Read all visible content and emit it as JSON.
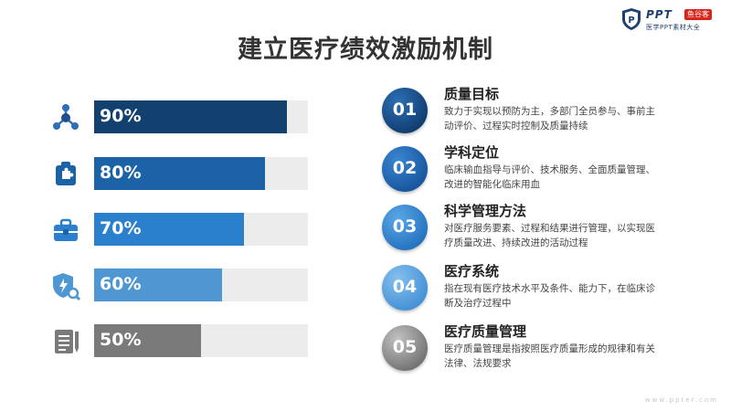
{
  "logo": {
    "name": "PPT",
    "tag": "鱼谷客",
    "subtitle": "医学PPT素材大全"
  },
  "title": "建立医疗绩效激励机制",
  "colors": {
    "dark_blue": "#12406f",
    "mid_blue": "#1c62a6",
    "blue": "#2a80cc",
    "light_blue": "#4f97d3",
    "gray": "#7a7a7a",
    "track": "#ececec"
  },
  "bars": [
    {
      "icon": "network-icon",
      "label": "90%",
      "value": 0.9,
      "color": "#12406f"
    },
    {
      "icon": "puzzle-icon",
      "label": "80%",
      "value": 0.8,
      "color": "#1c62a6"
    },
    {
      "icon": "briefcase-icon",
      "label": "70%",
      "value": 0.7,
      "color": "#2a80cc"
    },
    {
      "icon": "shield-search-icon",
      "label": "60%",
      "value": 0.6,
      "color": "#4f97d3"
    },
    {
      "icon": "document-pen-icon",
      "label": "50%",
      "value": 0.5,
      "color": "#7a7a7a"
    }
  ],
  "items": [
    {
      "num": "01",
      "title": "质量目标",
      "desc": "致力于实现以预防为主，多部门全员参与、事前主动评价、过程实时控制及质量持续"
    },
    {
      "num": "02",
      "title": "学科定位",
      "desc": "临床输血指导与评价、技术服务、全面质量管理、改进的智能化临床用血"
    },
    {
      "num": "03",
      "title": "科学管理方法",
      "desc": "对医疗服务要素、过程和结果进行管理，以实现医疗质量改进、持续改进的活动过程"
    },
    {
      "num": "04",
      "title": "医疗系统",
      "desc": "指在现有医疗技术水平及条件、能力下，在临床诊断及治疗过程中"
    },
    {
      "num": "05",
      "title": "医疗质量管理",
      "desc": "医疗质量管理是指按照医疗质量形成的规律和有关法律、法规要求"
    }
  ],
  "watermark": "www.ppter.com"
}
